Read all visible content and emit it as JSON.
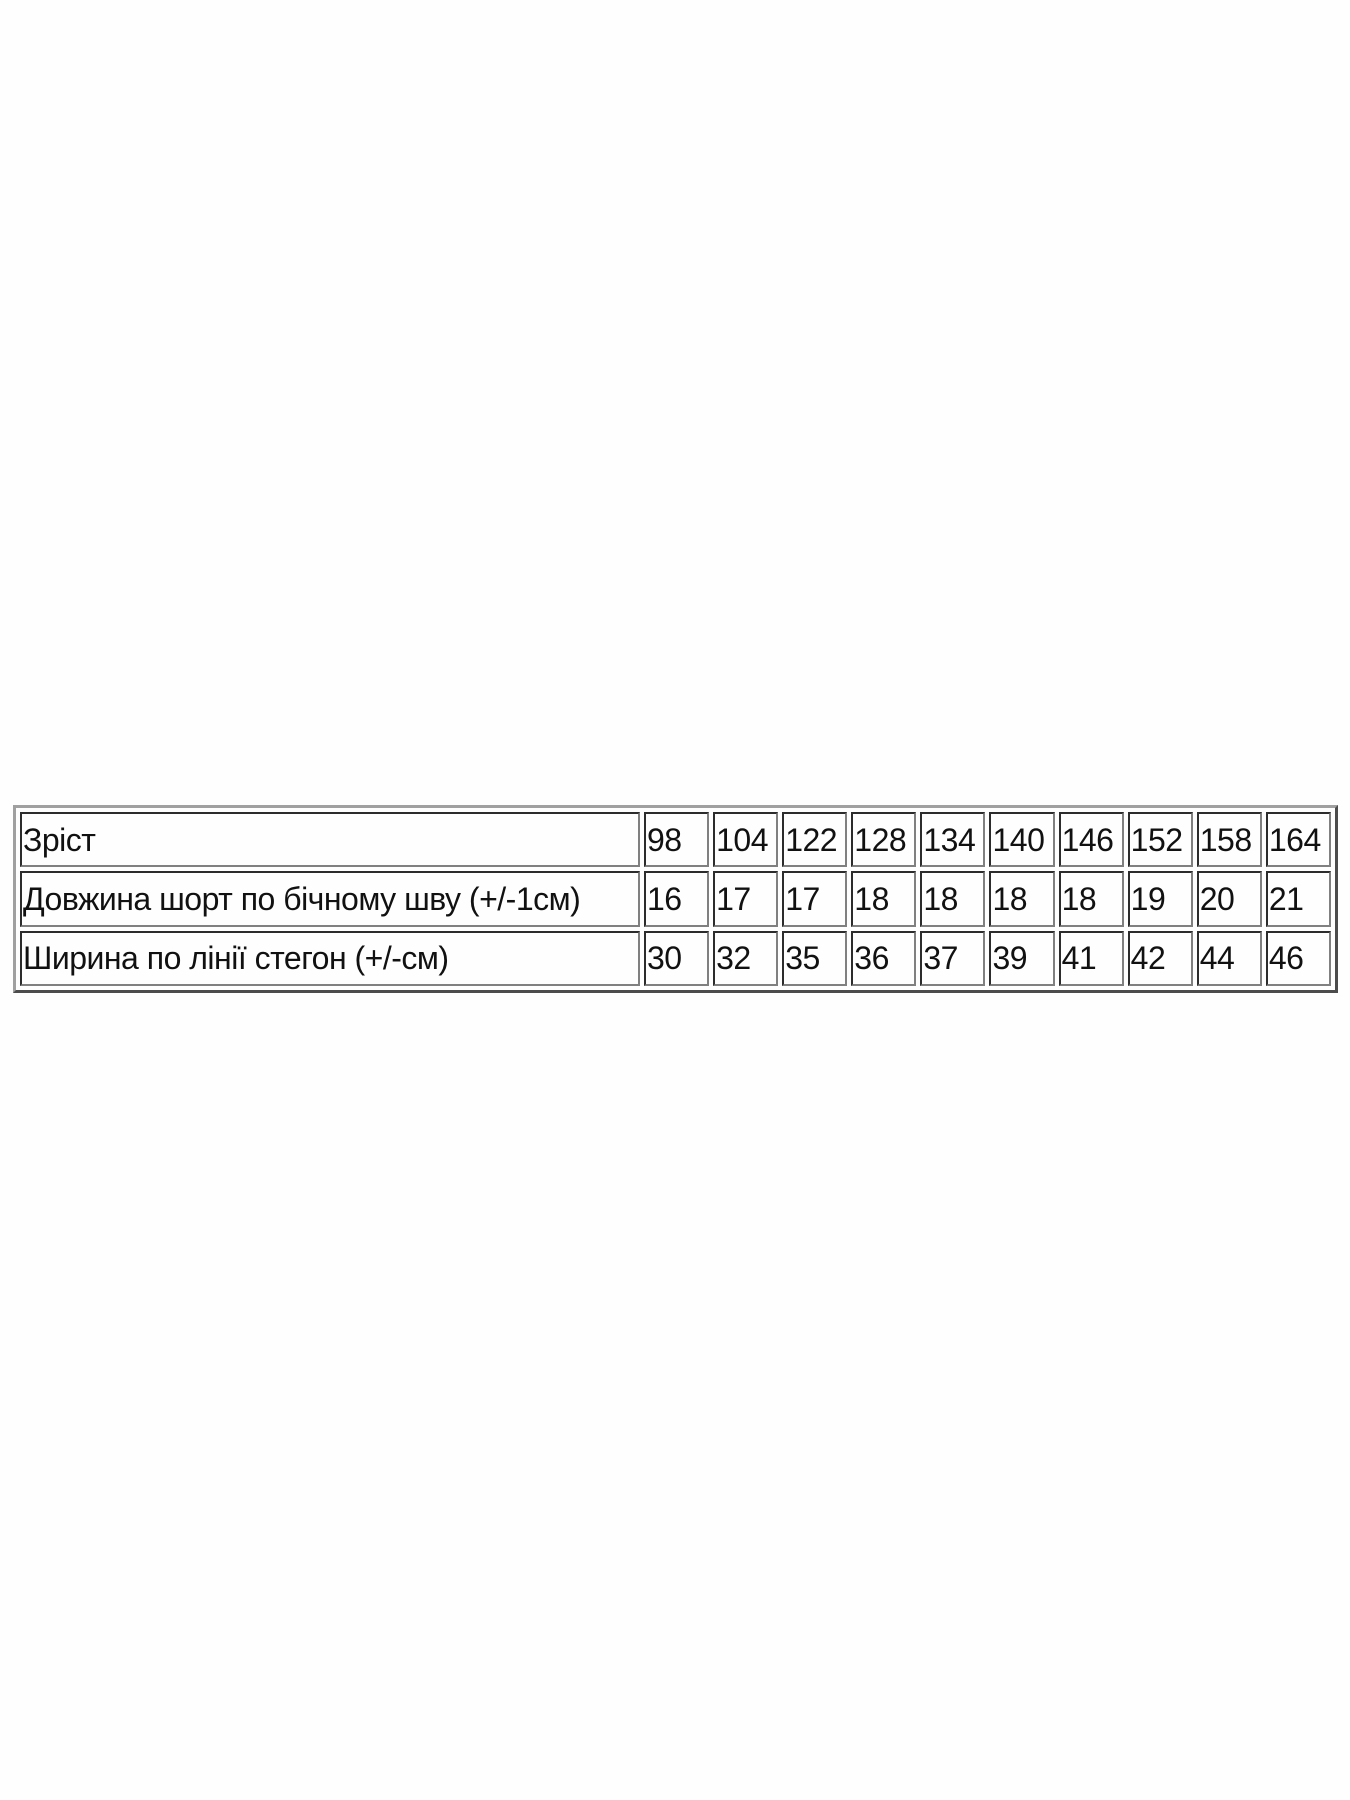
{
  "table": {
    "rows": [
      {
        "label": "Зріст",
        "values": [
          "98",
          "104",
          "122",
          "128",
          "134",
          "140",
          "146",
          "152",
          "158",
          "164"
        ]
      },
      {
        "label": "Довжина шорт по бічному шву (+/-1см)",
        "values": [
          "16",
          "17",
          "17",
          "18",
          "18",
          "18",
          "18",
          "19",
          "20",
          "21"
        ]
      },
      {
        "label": "Ширина по лінії стегон (+/-см)",
        "values": [
          "30",
          "32",
          "35",
          "36",
          "37",
          "39",
          "41",
          "42",
          "44",
          "46"
        ]
      }
    ]
  }
}
